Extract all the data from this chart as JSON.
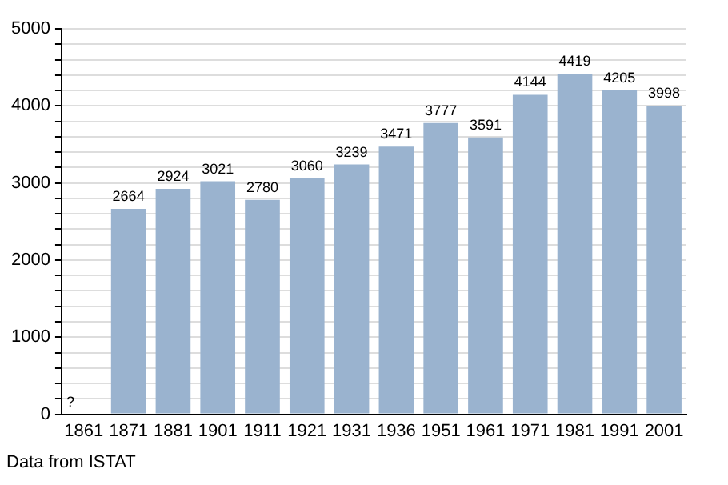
{
  "chart_data": {
    "type": "bar",
    "categories": [
      "1861",
      "1871",
      "1881",
      "1901",
      "1911",
      "1921",
      "1931",
      "1936",
      "1951",
      "1961",
      "1971",
      "1981",
      "1991",
      "2001"
    ],
    "values": [
      null,
      2664,
      2924,
      3021,
      2780,
      3060,
      3239,
      3471,
      3777,
      3591,
      4144,
      4419,
      4205,
      3998
    ],
    "value_labels": [
      "?",
      "2664",
      "2924",
      "3021",
      "2780",
      "3060",
      "3239",
      "3471",
      "3777",
      "3591",
      "4144",
      "4419",
      "4205",
      "3998"
    ],
    "color": "#9ab3cf",
    "ylim": [
      0,
      5000
    ],
    "yticks": [
      0,
      {
        "value": 200,
        "label": null
      },
      {
        "value": 400,
        "label": null
      },
      {
        "value": 600,
        "label": null
      },
      {
        "value": 800,
        "label": null
      },
      1000,
      {
        "value": 1200,
        "label": null
      },
      {
        "value": 1400,
        "label": null
      },
      {
        "value": 1600,
        "label": null
      },
      {
        "value": 1800,
        "label": null
      },
      2000,
      {
        "value": 2200,
        "label": null
      },
      {
        "value": 2400,
        "label": null
      },
      {
        "value": 2600,
        "label": null
      },
      {
        "value": 2800,
        "label": null
      },
      3000,
      {
        "value": 3200,
        "label": null
      },
      {
        "value": 3400,
        "label": null
      },
      {
        "value": 3600,
        "label": null
      },
      {
        "value": 3800,
        "label": null
      },
      4000,
      {
        "value": 4200,
        "label": null
      },
      {
        "value": 4400,
        "label": null
      },
      {
        "value": 4600,
        "label": null
      },
      {
        "value": 4800,
        "label": null
      },
      5000
    ],
    "grid": "y",
    "legend": false,
    "annotations": [
      "Data from ISTAT"
    ]
  }
}
